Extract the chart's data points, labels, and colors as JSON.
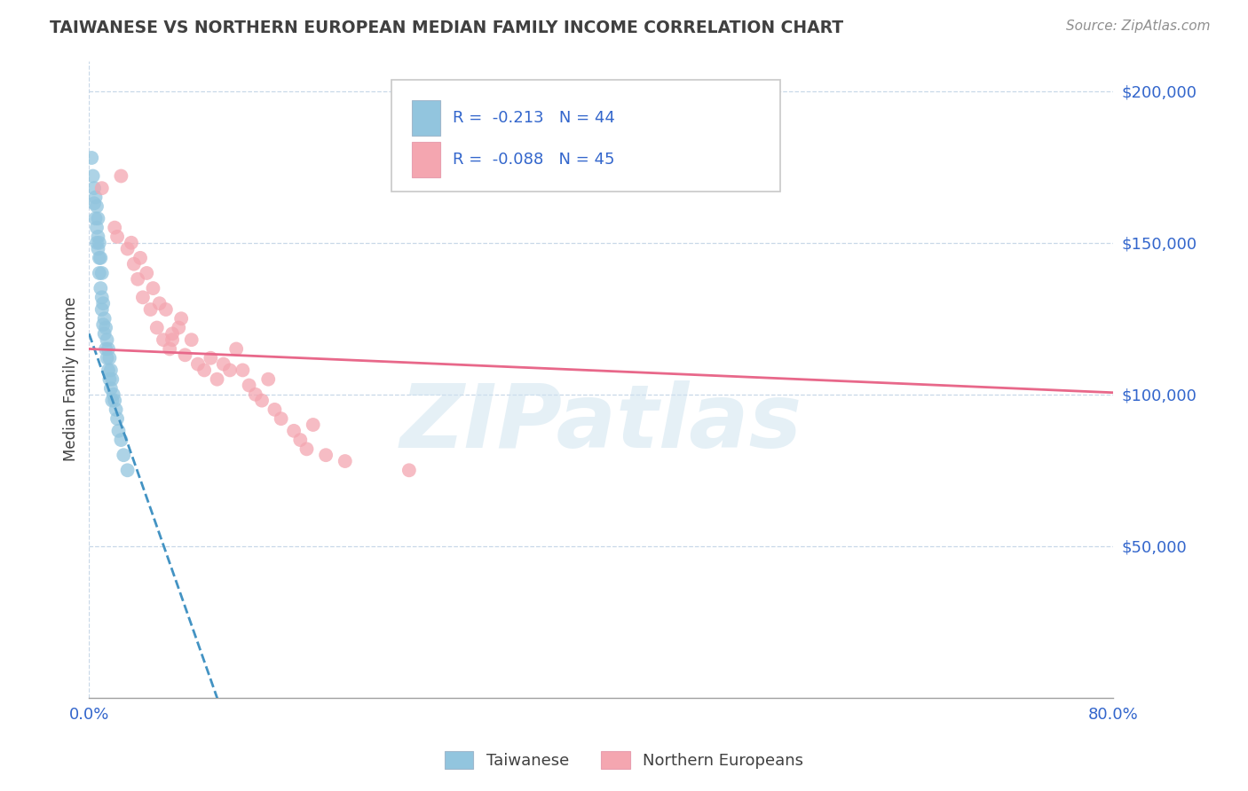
{
  "title": "TAIWANESE VS NORTHERN EUROPEAN MEDIAN FAMILY INCOME CORRELATION CHART",
  "source_text": "Source: ZipAtlas.com",
  "ylabel": "Median Family Income",
  "taiwanese_R": -0.213,
  "taiwanese_N": 44,
  "northern_R": -0.088,
  "northern_N": 45,
  "taiwanese_color": "#92c5de",
  "taiwanese_color_edge": "none",
  "northern_color": "#f4a6b0",
  "northern_line_color": "#e8688a",
  "taiwanese_line_color": "#4393c3",
  "legend_taiwanese": "Taiwanese",
  "legend_northern": "Northern Europeans",
  "watermark": "ZIPatlas",
  "xmin": 0.0,
  "xmax": 0.8,
  "ymin": 0,
  "ymax": 210000,
  "taiwanese_x": [
    0.002,
    0.003,
    0.004,
    0.004,
    0.005,
    0.005,
    0.006,
    0.006,
    0.006,
    0.007,
    0.007,
    0.007,
    0.008,
    0.008,
    0.008,
    0.009,
    0.009,
    0.01,
    0.01,
    0.01,
    0.011,
    0.011,
    0.012,
    0.012,
    0.013,
    0.013,
    0.014,
    0.014,
    0.015,
    0.015,
    0.016,
    0.016,
    0.017,
    0.017,
    0.018,
    0.018,
    0.019,
    0.02,
    0.021,
    0.022,
    0.023,
    0.025,
    0.027,
    0.03
  ],
  "taiwanese_y": [
    178000,
    172000,
    168000,
    163000,
    165000,
    158000,
    162000,
    155000,
    150000,
    158000,
    152000,
    148000,
    150000,
    145000,
    140000,
    145000,
    135000,
    140000,
    132000,
    128000,
    130000,
    123000,
    125000,
    120000,
    122000,
    115000,
    118000,
    112000,
    115000,
    108000,
    112000,
    105000,
    108000,
    102000,
    105000,
    98000,
    100000,
    98000,
    95000,
    92000,
    88000,
    85000,
    80000,
    75000
  ],
  "northern_x": [
    0.01,
    0.02,
    0.022,
    0.025,
    0.03,
    0.033,
    0.035,
    0.038,
    0.04,
    0.042,
    0.045,
    0.048,
    0.05,
    0.053,
    0.055,
    0.058,
    0.06,
    0.063,
    0.065,
    0.065,
    0.07,
    0.072,
    0.075,
    0.08,
    0.085,
    0.09,
    0.095,
    0.1,
    0.105,
    0.11,
    0.115,
    0.12,
    0.125,
    0.13,
    0.135,
    0.14,
    0.145,
    0.15,
    0.16,
    0.165,
    0.17,
    0.175,
    0.185,
    0.2,
    0.25
  ],
  "northern_y": [
    168000,
    155000,
    152000,
    172000,
    148000,
    150000,
    143000,
    138000,
    145000,
    132000,
    140000,
    128000,
    135000,
    122000,
    130000,
    118000,
    128000,
    115000,
    120000,
    118000,
    122000,
    125000,
    113000,
    118000,
    110000,
    108000,
    112000,
    105000,
    110000,
    108000,
    115000,
    108000,
    103000,
    100000,
    98000,
    105000,
    95000,
    92000,
    88000,
    85000,
    82000,
    90000,
    80000,
    78000,
    75000
  ]
}
